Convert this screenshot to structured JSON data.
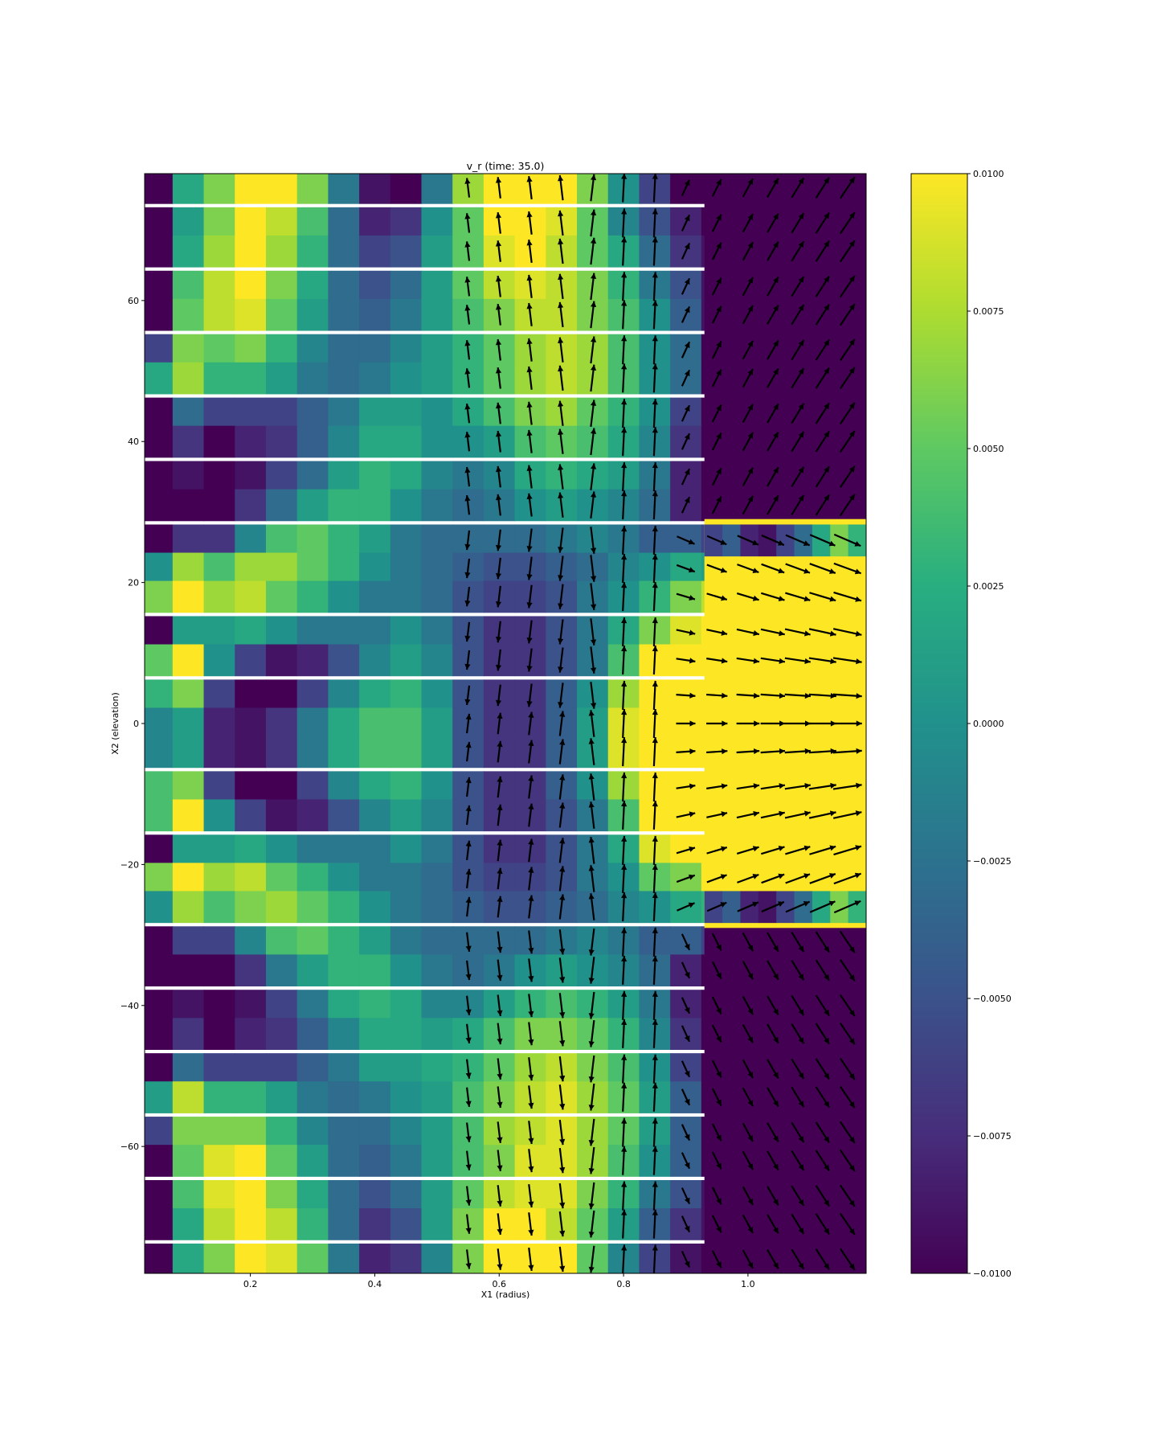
{
  "chart_data": {
    "type": "heatmap",
    "title": "v_r (time: 35.0)",
    "xlabel": "X1 (radius)",
    "ylabel": "X2 (elevation)",
    "xlim": [
      0.03,
      1.19
    ],
    "ylim": [
      -78,
      78
    ],
    "xticks": [
      0.2,
      0.4,
      0.6,
      0.8,
      1.0
    ],
    "xtick_labels": [
      "0.2",
      "0.4",
      "0.6",
      "0.8",
      "1.0"
    ],
    "yticks": [
      60,
      40,
      20,
      0,
      -20,
      -40,
      -60
    ],
    "ytick_labels": [
      "60",
      "40",
      "20",
      "0",
      "−20",
      "−40",
      "−60"
    ],
    "colormap": "viridis",
    "clim": [
      -0.01,
      0.01
    ],
    "colorbar_ticks": [
      0.01,
      0.0075,
      0.005,
      0.0025,
      0.0,
      -0.0025,
      -0.005,
      -0.0075,
      -0.01
    ],
    "colorbar_tick_labels": [
      "0.0100",
      "0.0075",
      "0.0050",
      "0.0025",
      "0.0000",
      "−0.0025",
      "−0.0050",
      "−0.0075",
      "−0.0100"
    ],
    "cell_columns_x": [
      0.05,
      0.1,
      0.15,
      0.2,
      0.25,
      0.3,
      0.35,
      0.4,
      0.45,
      0.5,
      0.55,
      0.6,
      0.65,
      0.7,
      0.75,
      0.8,
      0.85,
      0.9,
      0.95
    ],
    "cell_rows_y": [
      76,
      71,
      67,
      62,
      58,
      53,
      49,
      44,
      40,
      35,
      31,
      26,
      22,
      18,
      13,
      9,
      4,
      0,
      -4,
      -9,
      -13,
      -18,
      -22,
      -26,
      -31,
      -35,
      -40,
      -44,
      -49,
      -53,
      -58,
      -62,
      -67,
      -71,
      -76
    ],
    "values": [
      [
        -0.01,
        0.002,
        0.006,
        0.01,
        0.01,
        0.006,
        -0.002,
        -0.009,
        -0.01,
        -0.002,
        0.007,
        0.01,
        0.01,
        0.01,
        0.006,
        0.0,
        -0.006,
        -0.01,
        -0.01
      ],
      [
        -0.01,
        0.001,
        0.006,
        0.01,
        0.008,
        0.004,
        -0.003,
        -0.008,
        -0.007,
        0.0,
        0.005,
        0.01,
        0.01,
        0.009,
        0.005,
        -0.001,
        -0.005,
        -0.008,
        -0.01
      ],
      [
        -0.01,
        0.002,
        0.007,
        0.01,
        0.007,
        0.003,
        -0.003,
        -0.006,
        -0.005,
        0.001,
        0.005,
        0.009,
        0.01,
        0.008,
        0.005,
        0.002,
        -0.003,
        -0.007,
        -0.009
      ],
      [
        -0.01,
        0.004,
        0.008,
        0.01,
        0.006,
        0.002,
        -0.003,
        -0.005,
        -0.003,
        0.001,
        0.005,
        0.008,
        0.009,
        0.008,
        0.006,
        0.003,
        -0.002,
        -0.005,
        -0.009
      ],
      [
        -0.01,
        0.005,
        0.008,
        0.009,
        0.005,
        0.001,
        -0.003,
        -0.004,
        -0.002,
        0.001,
        0.004,
        0.006,
        0.008,
        0.008,
        0.006,
        0.004,
        0.0,
        -0.004,
        -0.009
      ],
      [
        -0.006,
        0.006,
        0.005,
        0.006,
        0.003,
        -0.001,
        -0.003,
        -0.003,
        -0.001,
        0.001,
        0.003,
        0.005,
        0.007,
        0.008,
        0.007,
        0.004,
        0.0,
        -0.003,
        -0.01
      ],
      [
        0.002,
        0.007,
        0.003,
        0.003,
        0.001,
        -0.002,
        -0.003,
        -0.002,
        0.0,
        0.001,
        0.003,
        0.005,
        0.007,
        0.008,
        0.007,
        0.004,
        0.0,
        -0.003,
        -0.01
      ],
      [
        -0.01,
        -0.003,
        -0.006,
        -0.006,
        -0.006,
        -0.004,
        -0.002,
        0.001,
        0.001,
        0.0,
        0.002,
        0.004,
        0.006,
        0.007,
        0.005,
        0.003,
        0.0,
        -0.006,
        -0.01
      ],
      [
        -0.01,
        -0.007,
        -0.01,
        -0.008,
        -0.007,
        -0.004,
        -0.001,
        0.002,
        0.002,
        0.0,
        0.0,
        0.001,
        0.004,
        0.005,
        0.004,
        0.002,
        -0.001,
        -0.007,
        -0.01
      ],
      [
        -0.01,
        -0.009,
        -0.01,
        -0.009,
        -0.006,
        -0.003,
        0.001,
        0.003,
        0.002,
        -0.001,
        -0.002,
        -0.001,
        0.002,
        0.003,
        0.002,
        0.001,
        -0.002,
        -0.008,
        -0.01
      ],
      [
        -0.01,
        -0.01,
        -0.01,
        -0.007,
        -0.003,
        0.001,
        0.003,
        0.003,
        0.0,
        -0.002,
        -0.003,
        -0.002,
        0.0,
        0.001,
        0.0,
        -0.001,
        -0.003,
        -0.008,
        -0.01
      ],
      [
        -0.01,
        -0.007,
        -0.007,
        -0.001,
        0.004,
        0.005,
        0.003,
        0.001,
        -0.002,
        -0.003,
        -0.003,
        -0.003,
        -0.003,
        -0.002,
        -0.001,
        -0.002,
        -0.004,
        -0.004,
        -0.006
      ],
      [
        0.0,
        0.007,
        0.004,
        0.007,
        0.007,
        0.005,
        0.003,
        0.0,
        -0.002,
        -0.003,
        -0.004,
        -0.005,
        -0.005,
        -0.004,
        -0.003,
        -0.001,
        0.0,
        0.002,
        0.001
      ],
      [
        0.006,
        0.01,
        0.007,
        0.008,
        0.005,
        0.003,
        0.0,
        -0.002,
        -0.002,
        -0.003,
        -0.005,
        -0.006,
        -0.006,
        -0.005,
        -0.002,
        0.0,
        0.003,
        0.006,
        0.008
      ],
      [
        -0.01,
        0.001,
        0.001,
        0.002,
        0.0,
        -0.002,
        -0.002,
        -0.002,
        0.0,
        -0.002,
        -0.005,
        -0.007,
        -0.007,
        -0.005,
        -0.002,
        0.002,
        0.006,
        0.009,
        0.01
      ],
      [
        0.005,
        0.01,
        0.0,
        -0.006,
        -0.009,
        -0.008,
        -0.005,
        -0.001,
        0.001,
        -0.001,
        -0.005,
        -0.007,
        -0.007,
        -0.005,
        -0.002,
        0.004,
        0.01,
        0.01,
        0.01
      ],
      [
        0.003,
        0.006,
        -0.006,
        -0.01,
        -0.01,
        -0.006,
        -0.001,
        0.002,
        0.003,
        0.0,
        -0.005,
        -0.007,
        -0.007,
        -0.004,
        0.0,
        0.007,
        0.01,
        0.01,
        0.01
      ],
      [
        -0.001,
        0.001,
        -0.008,
        -0.009,
        -0.007,
        -0.002,
        0.002,
        0.004,
        0.004,
        0.001,
        -0.005,
        -0.007,
        -0.007,
        -0.004,
        0.001,
        0.009,
        0.01,
        0.01,
        0.01
      ],
      [
        -0.001,
        0.001,
        -0.008,
        -0.009,
        -0.007,
        -0.002,
        0.002,
        0.004,
        0.004,
        0.001,
        -0.005,
        -0.007,
        -0.007,
        -0.004,
        0.001,
        0.009,
        0.01,
        0.01,
        0.01
      ],
      [
        0.004,
        0.006,
        -0.006,
        -0.01,
        -0.01,
        -0.006,
        -0.001,
        0.002,
        0.003,
        0.0,
        -0.005,
        -0.007,
        -0.007,
        -0.004,
        0.0,
        0.007,
        0.01,
        0.01,
        0.01
      ],
      [
        0.004,
        0.01,
        0.0,
        -0.006,
        -0.009,
        -0.008,
        -0.005,
        -0.001,
        0.001,
        -0.001,
        -0.005,
        -0.007,
        -0.007,
        -0.005,
        -0.002,
        0.004,
        0.01,
        0.01,
        0.01
      ],
      [
        -0.01,
        0.001,
        0.001,
        0.002,
        0.0,
        -0.002,
        -0.002,
        -0.002,
        0.0,
        -0.002,
        -0.005,
        -0.007,
        -0.007,
        -0.005,
        -0.002,
        0.002,
        0.009,
        0.01,
        0.01
      ],
      [
        0.006,
        0.01,
        0.007,
        0.008,
        0.005,
        0.003,
        0.0,
        -0.002,
        -0.002,
        -0.003,
        -0.005,
        -0.006,
        -0.006,
        -0.005,
        -0.002,
        0.0,
        0.005,
        0.006,
        0.01
      ],
      [
        0.0,
        0.007,
        0.004,
        0.006,
        0.007,
        0.005,
        0.003,
        0.0,
        -0.002,
        -0.003,
        -0.004,
        -0.005,
        -0.005,
        -0.004,
        -0.003,
        -0.001,
        0.0,
        0.002,
        0.003
      ],
      [
        -0.01,
        -0.006,
        -0.006,
        -0.001,
        0.004,
        0.005,
        0.003,
        0.001,
        -0.002,
        -0.003,
        -0.003,
        -0.003,
        -0.003,
        -0.002,
        -0.001,
        -0.002,
        -0.004,
        -0.004,
        -0.006
      ],
      [
        -0.01,
        -0.01,
        -0.01,
        -0.007,
        -0.002,
        0.001,
        0.003,
        0.003,
        0.0,
        -0.002,
        -0.003,
        -0.002,
        0.0,
        0.001,
        0.0,
        -0.001,
        -0.003,
        -0.008,
        -0.01
      ],
      [
        -0.01,
        -0.009,
        -0.01,
        -0.009,
        -0.006,
        -0.002,
        0.002,
        0.003,
        0.002,
        -0.001,
        -0.001,
        0.001,
        0.003,
        0.004,
        0.003,
        0.001,
        -0.002,
        -0.008,
        -0.01
      ],
      [
        -0.01,
        -0.007,
        -0.01,
        -0.008,
        -0.007,
        -0.004,
        -0.001,
        0.002,
        0.002,
        0.001,
        0.002,
        0.004,
        0.006,
        0.006,
        0.005,
        0.003,
        -0.001,
        -0.007,
        -0.01
      ],
      [
        -0.01,
        -0.003,
        -0.006,
        -0.006,
        -0.006,
        -0.004,
        -0.002,
        0.001,
        0.001,
        0.002,
        0.003,
        0.005,
        0.007,
        0.008,
        0.006,
        0.004,
        0.0,
        -0.006,
        -0.01
      ],
      [
        0.001,
        0.008,
        0.003,
        0.003,
        0.001,
        -0.002,
        -0.003,
        -0.002,
        0.0,
        0.001,
        0.004,
        0.006,
        0.008,
        0.009,
        0.007,
        0.005,
        0.001,
        -0.004,
        -0.01
      ],
      [
        -0.006,
        0.006,
        0.006,
        0.006,
        0.003,
        -0.001,
        -0.003,
        -0.003,
        -0.001,
        0.001,
        0.004,
        0.007,
        0.008,
        0.009,
        0.007,
        0.005,
        0.001,
        -0.004,
        -0.01
      ],
      [
        -0.01,
        0.005,
        0.009,
        0.01,
        0.005,
        0.001,
        -0.003,
        -0.004,
        -0.002,
        0.001,
        0.004,
        0.006,
        0.009,
        0.009,
        0.007,
        0.004,
        0.0,
        -0.004,
        -0.01
      ],
      [
        -0.01,
        0.004,
        0.009,
        0.01,
        0.006,
        0.002,
        -0.003,
        -0.005,
        -0.003,
        0.001,
        0.005,
        0.008,
        0.009,
        0.009,
        0.006,
        0.003,
        -0.002,
        -0.005,
        -0.009
      ],
      [
        -0.01,
        0.002,
        0.008,
        0.01,
        0.008,
        0.003,
        -0.003,
        -0.007,
        -0.005,
        0.001,
        0.006,
        0.01,
        0.01,
        0.008,
        0.005,
        0.001,
        -0.004,
        -0.007,
        -0.009
      ],
      [
        -0.01,
        0.002,
        0.006,
        0.01,
        0.009,
        0.005,
        -0.002,
        -0.008,
        -0.007,
        -0.001,
        0.006,
        0.01,
        0.01,
        0.01,
        0.005,
        -0.001,
        -0.006,
        -0.009,
        -0.01
      ]
    ],
    "right_zone": {
      "x_range": [
        0.93,
        1.19
      ],
      "upper_value": -0.01,
      "upper_y": [
        29,
        78
      ],
      "inner_band_value": 0.01,
      "inner_band_y": [
        -29,
        29
      ],
      "lower_value": -0.01,
      "lower_y": [
        -78,
        -29
      ],
      "transition_rows_y": [
        26,
        -26
      ],
      "transition_values": [
        -0.006,
        -0.004,
        -0.008,
        -0.009,
        -0.006,
        -0.003,
        0.002,
        0.006,
        0.003
      ]
    },
    "vector_field": {
      "description": "quiver overlay of velocity direction",
      "columns_x": [
        0.55,
        0.6,
        0.65,
        0.7,
        0.75,
        0.8,
        0.85,
        0.9,
        0.95,
        1.0,
        1.04,
        1.08,
        1.12,
        1.16
      ],
      "rows_y": [
        76,
        71,
        67,
        62,
        58,
        53,
        49,
        44,
        40,
        35,
        31,
        26,
        22,
        18,
        13,
        9,
        4,
        0,
        -4,
        -9,
        -13,
        -18,
        -22,
        -26,
        -31,
        -35,
        -40,
        -44,
        -49,
        -53,
        -58,
        -62,
        -67,
        -71,
        -76
      ]
    }
  }
}
